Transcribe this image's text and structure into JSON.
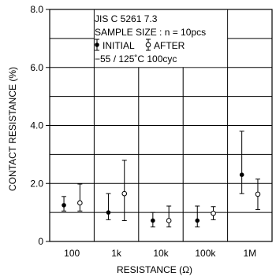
{
  "chart_data": {
    "type": "scatter",
    "categories": [
      "100",
      "1k",
      "10k",
      "100k",
      "1M"
    ],
    "xlabel": "RESISTANCE (Ω)",
    "ylabel": "CONTACT RESISTANCE (%)",
    "ylim": [
      0,
      8.0
    ],
    "yticks": [
      0,
      2.0,
      4.0,
      6.0,
      8.0
    ],
    "ytick_labels": [
      "0",
      "2.0",
      "4.0",
      "6.0",
      "8.0"
    ],
    "grid": true,
    "annotation": {
      "line1": "JIS  C  5261  7.3",
      "line2": "SAMPLE  SIZE : n = 10pcs",
      "initial_label": "INITIAL",
      "after_label": "AFTER",
      "line4": "−55 / 125˚C  100cyc"
    },
    "series": [
      {
        "name": "INITIAL",
        "marker": "filled-circle",
        "values": [
          1.25,
          1.0,
          0.72,
          0.72,
          2.3
        ],
        "err_low": [
          1.05,
          0.75,
          0.5,
          0.5,
          1.65
        ],
        "err_high": [
          1.55,
          1.65,
          1.0,
          1.22,
          3.8
        ]
      },
      {
        "name": "AFTER",
        "marker": "open-circle",
        "values": [
          1.33,
          1.65,
          0.72,
          0.97,
          1.63
        ],
        "err_low": [
          1.05,
          0.72,
          0.5,
          0.75,
          1.1
        ],
        "err_high": [
          1.98,
          2.8,
          1.22,
          1.2,
          2.15
        ]
      }
    ]
  }
}
